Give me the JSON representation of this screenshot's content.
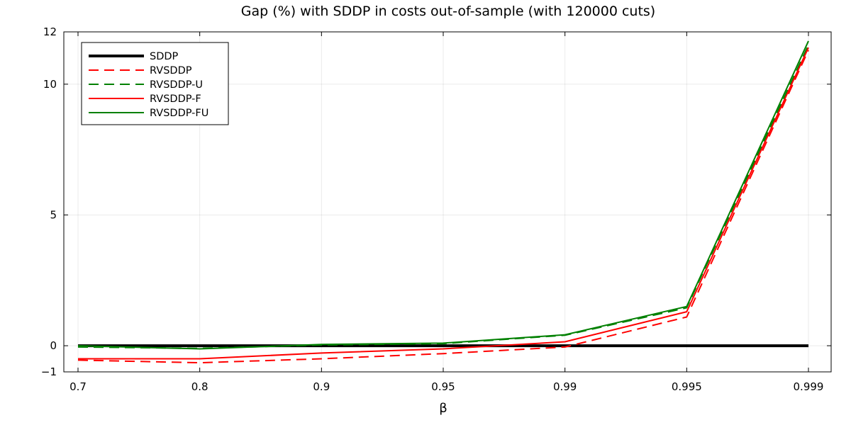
{
  "chart_data": {
    "type": "line",
    "title": "Gap (%) with SDDP in costs out-of-sample (with 120000 cuts)",
    "xlabel": "β",
    "ylabel": "",
    "categories": [
      "0.7",
      "0.8",
      "0.9",
      "0.95",
      "0.99",
      "0.995",
      "0.999"
    ],
    "ylim": [
      -1,
      12
    ],
    "yticks": [
      -1,
      0,
      5,
      10,
      12
    ],
    "grid": true,
    "legend_position": "top-left",
    "series": [
      {
        "name": "SDDP",
        "color": "#000000",
        "style": "solid-thick",
        "values": [
          0,
          0,
          0,
          0,
          0,
          0,
          0
        ]
      },
      {
        "name": "RVSDDP",
        "color": "#ff0000",
        "style": "dashed",
        "values": [
          -0.55,
          -0.65,
          -0.5,
          -0.3,
          -0.05,
          1.1,
          11.3
        ]
      },
      {
        "name": "RVSDDP-U",
        "color": "#008000",
        "style": "dashed",
        "values": [
          -0.05,
          -0.1,
          0.03,
          0.08,
          0.4,
          1.45,
          11.5
        ]
      },
      {
        "name": "RVSDDP-F",
        "color": "#ff0000",
        "style": "solid",
        "values": [
          -0.5,
          -0.5,
          -0.28,
          -0.12,
          0.15,
          1.3,
          11.4
        ]
      },
      {
        "name": "RVSDDP-FU",
        "color": "#008000",
        "style": "solid",
        "values": [
          0,
          -0.12,
          0.05,
          0.1,
          0.42,
          1.5,
          11.65
        ]
      }
    ]
  }
}
